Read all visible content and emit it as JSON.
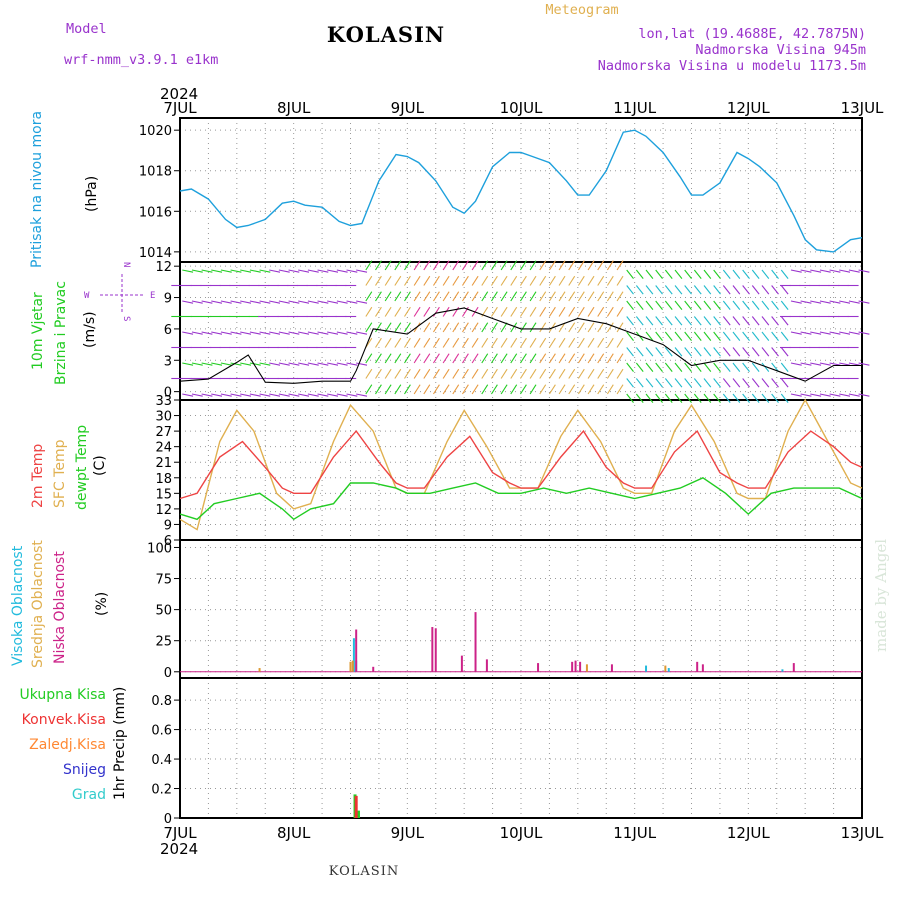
{
  "header": {
    "model_label": "Model",
    "model_name": "wrf-nmm_v3.9.1 e1km",
    "station": "KOLASIN",
    "meteogram": "Meteogram",
    "coords": "lon,lat (19.4688E, 42.7875N)",
    "elevation": "Nadmorska Visina 945m",
    "model_elevation": "Nadmorska Visina u modelu 1173.5m"
  },
  "footer": {
    "station": "KOLASIN",
    "watermark": "made by Angel"
  },
  "colors": {
    "pressure": "#1ea0dc",
    "wind_green": "#22cc22",
    "wind_purple": "#9933cc",
    "temp2m": "#ee4444",
    "sfc": "#e0b050",
    "dew": "#22cc22",
    "high_cloud": "#22bbdd",
    "mid_cloud": "#dd9933",
    "low_cloud": "#cc2288",
    "total_precip": "#22cc22",
    "conv_precip": "#ee3333",
    "frozen_precip": "#ff8833",
    "snow": "#3333cc",
    "hail": "#33cccc"
  },
  "chart_data": [
    {
      "type": "line",
      "panel": "pressure",
      "x_tick_labels": [
        "7JUL",
        "8JUL",
        "9JUL",
        "10JUL",
        "11JUL",
        "12JUL",
        "13JUL"
      ],
      "year": "2024",
      "ylabel": [
        "Pritisak na nivou mora",
        "(hPa)"
      ],
      "y_ticks": [
        "1014",
        "1016",
        "1018",
        "1020"
      ],
      "ylim": [
        1013.5,
        1020.6
      ],
      "series": [
        {
          "x": [
            0,
            0.1,
            0.25,
            0.4,
            0.5,
            0.6,
            0.75,
            0.9,
            1.0,
            1.1,
            1.25,
            1.4,
            1.5,
            1.6,
            1.75,
            1.9,
            2.0,
            2.1,
            2.25,
            2.4,
            2.5,
            2.6,
            2.75,
            2.9,
            3.0,
            3.1,
            3.25,
            3.4,
            3.5,
            3.6,
            3.75,
            3.9,
            4.0,
            4.1,
            4.25,
            4.4,
            4.5,
            4.6,
            4.75,
            4.9,
            5.0,
            5.1,
            5.25,
            5.4,
            5.5,
            5.6,
            5.75,
            5.9,
            6.0
          ],
          "values": [
            1017.0,
            1017.1,
            1016.6,
            1015.6,
            1015.2,
            1015.3,
            1015.6,
            1016.4,
            1016.5,
            1016.3,
            1016.2,
            1015.5,
            1015.3,
            1015.4,
            1017.5,
            1018.8,
            1018.7,
            1018.4,
            1017.5,
            1016.2,
            1015.9,
            1016.5,
            1018.2,
            1018.9,
            1018.9,
            1018.7,
            1018.4,
            1017.5,
            1016.8,
            1016.8,
            1018.0,
            1019.9,
            1020.0,
            1019.7,
            1018.9,
            1017.7,
            1016.8,
            1016.8,
            1017.4,
            1018.9,
            1018.6,
            1018.2,
            1017.4,
            1015.8,
            1014.6,
            1014.1,
            1014.0,
            1014.6,
            1014.7
          ]
        }
      ]
    },
    {
      "type": "line",
      "panel": "wind",
      "ylabel": [
        "10m Vjetar",
        "Brzina i Pravac",
        "(m/s)"
      ],
      "compass": [
        "W",
        "E",
        "N",
        "S"
      ],
      "y_ticks": [
        "0",
        "3",
        "6",
        "9",
        "12"
      ],
      "ylim": [
        -0.8,
        12.4
      ],
      "series": [
        {
          "name": "speed",
          "x": [
            0,
            0.25,
            0.5,
            0.6,
            0.75,
            1.0,
            1.25,
            1.5,
            1.55,
            1.7,
            2.0,
            2.25,
            2.5,
            2.75,
            3.0,
            3.25,
            3.5,
            3.75,
            4.0,
            4.25,
            4.5,
            4.75,
            5.0,
            5.25,
            5.5,
            5.75,
            6.0
          ],
          "values": [
            1.0,
            1.2,
            2.8,
            3.5,
            0.9,
            0.8,
            1.0,
            1.0,
            2.0,
            6.0,
            5.5,
            7.5,
            8.0,
            7.0,
            6.0,
            6.0,
            7.0,
            6.5,
            5.5,
            4.5,
            2.5,
            3.0,
            3.0,
            2.0,
            1.0,
            2.5,
            2.5
          ]
        }
      ]
    },
    {
      "type": "line",
      "panel": "temperature",
      "ylabel": [
        "2m Temp",
        "SFC Temp",
        "dewpt Temp",
        "(C)"
      ],
      "y_ticks": [
        "6",
        "9",
        "12",
        "15",
        "18",
        "21",
        "24",
        "27",
        "30",
        "33"
      ],
      "ylim": [
        6,
        33
      ],
      "series": [
        {
          "name": "2m Temp",
          "x": [
            0,
            0.15,
            0.35,
            0.55,
            0.75,
            0.9,
            1.0,
            1.15,
            1.35,
            1.55,
            1.75,
            1.9,
            2.0,
            2.15,
            2.35,
            2.55,
            2.75,
            2.9,
            3.0,
            3.15,
            3.35,
            3.55,
            3.75,
            3.9,
            4.0,
            4.15,
            4.35,
            4.55,
            4.75,
            4.9,
            5.0,
            5.15,
            5.35,
            5.55,
            5.75,
            5.9,
            6.0
          ],
          "values": [
            14,
            15,
            22,
            25,
            20,
            16,
            15,
            15,
            22,
            27,
            21,
            17,
            16,
            16,
            22,
            26,
            19,
            17,
            16,
            16,
            22,
            27,
            20,
            17,
            16,
            16,
            23,
            27,
            19,
            17,
            16,
            16,
            23,
            27,
            24,
            21,
            20
          ]
        },
        {
          "name": "SFC Temp",
          "x": [
            0,
            0.15,
            0.35,
            0.5,
            0.65,
            0.85,
            1.0,
            1.15,
            1.35,
            1.5,
            1.7,
            1.9,
            2.0,
            2.15,
            2.35,
            2.5,
            2.7,
            2.9,
            3.0,
            3.15,
            3.35,
            3.5,
            3.7,
            3.9,
            4.0,
            4.15,
            4.35,
            4.5,
            4.7,
            4.9,
            5.0,
            5.15,
            5.35,
            5.5,
            5.7,
            5.9,
            6.0
          ],
          "values": [
            10,
            8,
            25,
            31,
            27,
            15,
            12,
            13,
            25,
            32,
            27,
            16,
            15,
            15,
            25,
            31,
            24,
            16,
            16,
            16,
            26,
            31,
            25,
            16,
            15,
            15,
            27,
            32,
            25,
            15,
            14,
            14,
            27,
            33,
            25,
            17,
            16
          ]
        },
        {
          "name": "dewpt Temp",
          "x": [
            0,
            0.15,
            0.3,
            0.5,
            0.7,
            0.9,
            1.0,
            1.15,
            1.35,
            1.5,
            1.7,
            1.9,
            2.0,
            2.2,
            2.4,
            2.6,
            2.8,
            3.0,
            3.2,
            3.4,
            3.6,
            3.8,
            4.0,
            4.2,
            4.4,
            4.6,
            4.8,
            5.0,
            5.2,
            5.4,
            5.6,
            5.8,
            6.0
          ],
          "values": [
            11,
            10,
            13,
            14,
            15,
            12,
            10,
            12,
            13,
            17,
            17,
            16,
            15,
            15,
            16,
            17,
            15,
            15,
            16,
            15,
            16,
            15,
            14,
            15,
            16,
            18,
            15,
            11,
            15,
            16,
            16,
            16,
            14
          ]
        }
      ]
    },
    {
      "type": "bar",
      "panel": "cloud",
      "ylabel": [
        "Visoka Oblacnost",
        "Srednja Oblacnost",
        "Niska Oblacnost",
        "(%)"
      ],
      "y_ticks": [
        "0",
        "25",
        "50",
        "75",
        "100"
      ],
      "ylim": [
        -5,
        106
      ],
      "series": [
        {
          "name": "Visoka Oblacnost",
          "x": [
            1.53,
            1.55,
            4.1,
            4.3,
            5.3
          ],
          "values": [
            27,
            9,
            5,
            3,
            2
          ]
        },
        {
          "name": "Srednja Oblacnost",
          "x": [
            0.7,
            1.5,
            1.52,
            3.58,
            4.27
          ],
          "values": [
            3,
            8,
            9,
            6,
            5
          ]
        },
        {
          "name": "Niska Oblacnost",
          "x": [
            1.55,
            1.7,
            2.22,
            2.25,
            2.48,
            2.6,
            2.7,
            3.15,
            3.45,
            3.48,
            3.52,
            3.8,
            4.55,
            4.6,
            5.4
          ],
          "values": [
            34,
            4,
            36,
            35,
            13,
            48,
            10,
            7,
            8,
            9,
            8,
            6,
            8,
            6,
            7
          ]
        }
      ]
    },
    {
      "type": "bar",
      "panel": "precipitation",
      "ylabel": [
        "1hr Precip (mm)"
      ],
      "legend": [
        "Ukupna Kisa",
        "Konvek.Kisa",
        "Zaledj.Kisa",
        "Snijeg",
        "Grad"
      ],
      "y_ticks": [
        "0",
        "0.2",
        "0.4",
        "0.6",
        "0.8"
      ],
      "ylim": [
        0,
        0.95
      ],
      "series": [
        {
          "name": "Ukupna Kisa",
          "x": [
            1.54,
            1.57
          ],
          "values": [
            0.16,
            0.05
          ]
        },
        {
          "name": "Konvek.Kisa",
          "x": [
            1.55
          ],
          "values": [
            0.15
          ]
        }
      ]
    }
  ]
}
